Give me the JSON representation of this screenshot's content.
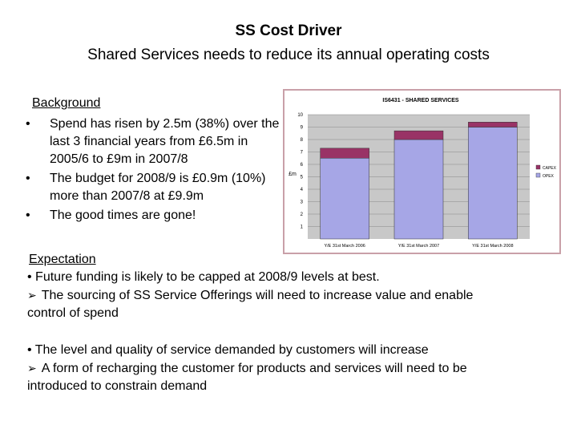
{
  "header": {
    "title": "SS Cost Driver",
    "subtitle": "Shared Services needs to reduce its annual operating costs"
  },
  "background": {
    "heading": "Background",
    "bullets": [
      "Spend has risen by 2.5m (38%) over the last 3 financial years from £6.5m in 2005/6 to £9m in 2007/8",
      "The budget for 2008/9 is £0.9m (10%) more than 2007/8 at £9.9m",
      "The good times are gone!"
    ]
  },
  "expectation": {
    "heading": "Expectation",
    "line1": "• Future funding is likely to be capped at 2008/9 levels at best.",
    "line2": "The sourcing of SS Service Offerings will need to increase value and enable",
    "line3": "control of spend",
    "line4": "• The level and quality of service demanded by customers will increase",
    "line5": "A form of recharging the customer for products and services will need to be",
    "line6": "introduced to constrain demand"
  },
  "colors": {
    "opex": "#a6a6e6",
    "capex": "#993366",
    "plot_bg": "#c8c8c8",
    "frame": "#c9a0a8"
  },
  "chart_data": {
    "type": "bar",
    "stacked": true,
    "title": "IS6431 - SHARED SERVICES",
    "ylabel": "£m",
    "xlabel": "",
    "ylim": [
      0,
      10
    ],
    "yticks": [
      1,
      2,
      3,
      4,
      5,
      6,
      7,
      8,
      9,
      10
    ],
    "categories": [
      "Y/E 31st March 2006",
      "Y/E 31st March 2007",
      "Y/E 31st March 2008"
    ],
    "series": [
      {
        "name": "OPEX",
        "values": [
          6.5,
          8.0,
          9.0
        ]
      },
      {
        "name": "CAPEX",
        "values": [
          0.8,
          0.7,
          0.4
        ]
      }
    ],
    "legend": [
      "CAPEX",
      "OPEX"
    ],
    "legend_position": "right",
    "grid": true
  }
}
